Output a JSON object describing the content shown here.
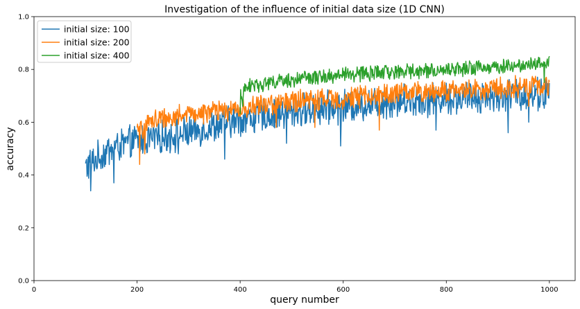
{
  "chart_data": {
    "type": "line",
    "title": "Investigation of the influence of initial data size (1D CNN)",
    "xlabel": "query number",
    "ylabel": "accuracy",
    "xlim": [
      0,
      1050
    ],
    "ylim": [
      0.0,
      1.0
    ],
    "xticks": [
      0,
      200,
      400,
      600,
      800,
      1000
    ],
    "yticks": [
      0.0,
      0.2,
      0.4,
      0.6,
      0.8,
      1.0
    ],
    "grid": false,
    "legend_position": "upper-left",
    "series": [
      {
        "name": "initial size: 100",
        "color": "#1f77b4",
        "x_start": 100,
        "x_end": 1000,
        "trend": [
          [
            100,
            0.43
          ],
          [
            150,
            0.5
          ],
          [
            200,
            0.53
          ],
          [
            300,
            0.56
          ],
          [
            400,
            0.61
          ],
          [
            500,
            0.64
          ],
          [
            600,
            0.66
          ],
          [
            700,
            0.68
          ],
          [
            800,
            0.69
          ],
          [
            900,
            0.7
          ],
          [
            1000,
            0.71
          ]
        ],
        "noise": 0.055,
        "dips": [
          [
            110,
            0.34
          ],
          [
            155,
            0.37
          ],
          [
            280,
            0.48
          ],
          [
            370,
            0.46
          ],
          [
            490,
            0.52
          ],
          [
            595,
            0.51
          ],
          [
            780,
            0.57
          ],
          [
            920,
            0.56
          ],
          [
            960,
            0.6
          ]
        ]
      },
      {
        "name": "initial size: 200",
        "color": "#ff7f0e",
        "x_start": 200,
        "x_end": 1000,
        "trend": [
          [
            200,
            0.56
          ],
          [
            230,
            0.61
          ],
          [
            300,
            0.63
          ],
          [
            400,
            0.65
          ],
          [
            500,
            0.68
          ],
          [
            600,
            0.69
          ],
          [
            700,
            0.71
          ],
          [
            800,
            0.72
          ],
          [
            900,
            0.73
          ],
          [
            1000,
            0.74
          ]
        ],
        "noise": 0.035,
        "dips": [
          [
            205,
            0.44
          ],
          [
            215,
            0.48
          ],
          [
            470,
            0.58
          ],
          [
            545,
            0.58
          ],
          [
            670,
            0.57
          ],
          [
            960,
            0.66
          ]
        ]
      },
      {
        "name": "initial size: 400",
        "color": "#2ca02c",
        "x_start": 400,
        "x_end": 1000,
        "trend": [
          [
            400,
            0.7
          ],
          [
            420,
            0.74
          ],
          [
            500,
            0.76
          ],
          [
            600,
            0.78
          ],
          [
            700,
            0.79
          ],
          [
            800,
            0.8
          ],
          [
            900,
            0.81
          ],
          [
            1000,
            0.83
          ]
        ],
        "noise": 0.025,
        "dips": [
          [
            400,
            0.63
          ],
          [
            405,
            0.66
          ],
          [
            990,
            0.75
          ]
        ]
      }
    ]
  }
}
